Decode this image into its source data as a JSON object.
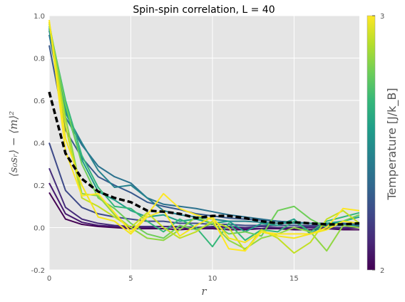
{
  "chart_data": {
    "type": "line",
    "title": "Spin-spin correlation, L = 40",
    "xlabel": "r",
    "ylabel": "⟨s₀sᵣ⟩ − ⟨m⟩²",
    "xlim": [
      0,
      19
    ],
    "ylim": [
      -0.2,
      1.0
    ],
    "xticks": [
      0,
      5,
      10,
      15
    ],
    "yticks": [
      -0.2,
      0.0,
      0.2,
      0.4,
      0.6,
      0.8,
      1.0
    ],
    "grid": true,
    "x": [
      0,
      1,
      2,
      3,
      4,
      5,
      6,
      7,
      8,
      9,
      10,
      11,
      12,
      13,
      14,
      15,
      16,
      17,
      18,
      19
    ],
    "series": [
      {
        "color": "#440154",
        "values": [
          0.165,
          0.04,
          0.015,
          0.005,
          0.0,
          -0.005,
          -0.005,
          -0.005,
          -0.01,
          -0.005,
          -0.005,
          -0.01,
          -0.01,
          -0.005,
          -0.005,
          -0.01,
          -0.01,
          -0.005,
          -0.01,
          -0.01
        ]
      },
      {
        "color": "#46186f",
        "values": [
          0.21,
          0.065,
          0.025,
          0.01,
          0.005,
          0.0,
          0.0,
          0.005,
          0.0,
          -0.005,
          0.0,
          0.0,
          -0.005,
          -0.005,
          0.0,
          -0.005,
          0.0,
          -0.005,
          -0.005,
          0.0
        ]
      },
      {
        "color": "#472d7b",
        "values": [
          0.28,
          0.095,
          0.04,
          0.02,
          0.01,
          0.005,
          0.005,
          0.005,
          0.005,
          0.0,
          0.005,
          0.005,
          0.0,
          0.005,
          0.0,
          0.0,
          0.005,
          0.0,
          0.0,
          0.005
        ]
      },
      {
        "color": "#3e4a89",
        "values": [
          0.4,
          0.175,
          0.095,
          0.065,
          0.05,
          0.04,
          0.03,
          0.03,
          0.02,
          0.02,
          0.015,
          0.015,
          0.01,
          0.01,
          0.01,
          0.01,
          0.01,
          0.01,
          0.01,
          0.01
        ]
      },
      {
        "color": "#38598c",
        "values": [
          0.86,
          0.46,
          0.33,
          0.24,
          0.2,
          0.165,
          0.12,
          0.1,
          0.085,
          0.065,
          0.055,
          0.045,
          0.04,
          0.035,
          0.03,
          0.025,
          0.02,
          0.02,
          0.02,
          0.015
        ]
      },
      {
        "color": "#2c728e",
        "values": [
          0.91,
          0.52,
          0.39,
          0.29,
          0.24,
          0.21,
          0.14,
          0.11,
          0.1,
          0.09,
          0.075,
          0.06,
          0.05,
          0.04,
          0.03,
          0.025,
          0.02,
          0.02,
          0.015,
          0.01
        ]
      },
      {
        "color": "#26828e",
        "values": [
          0.93,
          0.54,
          0.4,
          0.27,
          0.19,
          0.2,
          0.14,
          0.08,
          0.06,
          0.05,
          0.04,
          0.03,
          0.03,
          0.025,
          0.02,
          0.02,
          0.02,
          0.015,
          0.01,
          0.01
        ]
      },
      {
        "color": "#1f9e89",
        "values": [
          0.94,
          0.56,
          0.32,
          0.17,
          0.13,
          0.08,
          0.05,
          0.06,
          0.03,
          0.04,
          0.02,
          0.03,
          -0.02,
          0.02,
          0.01,
          0.04,
          -0.03,
          0.02,
          0.03,
          0.05
        ]
      },
      {
        "color": "#35b779",
        "values": [
          0.95,
          0.6,
          0.34,
          0.19,
          0.1,
          0.09,
          0.03,
          -0.02,
          0.04,
          0.0,
          -0.09,
          0.02,
          -0.06,
          -0.01,
          -0.02,
          0.03,
          -0.02,
          0.03,
          0.05,
          0.07
        ]
      },
      {
        "color": "#6ece58",
        "values": [
          0.96,
          0.58,
          0.3,
          0.14,
          0.09,
          0.02,
          -0.03,
          -0.05,
          0.01,
          -0.01,
          0.02,
          -0.03,
          -0.02,
          -0.04,
          0.08,
          0.1,
          0.04,
          0.0,
          0.03,
          0.06
        ]
      },
      {
        "color": "#90d743",
        "values": [
          0.97,
          0.52,
          0.16,
          0.15,
          0.06,
          0.0,
          -0.05,
          -0.06,
          -0.01,
          0.05,
          0.02,
          -0.06,
          -0.1,
          -0.05,
          -0.03,
          0.0,
          -0.02,
          -0.11,
          0.01,
          0.0
        ]
      },
      {
        "color": "#c2df23",
        "values": [
          0.97,
          0.48,
          0.14,
          0.1,
          0.05,
          0.0,
          0.07,
          0.0,
          -0.05,
          -0.02,
          0.03,
          0.0,
          -0.11,
          -0.01,
          -0.05,
          -0.12,
          -0.07,
          0.04,
          0.08,
          0.02
        ]
      },
      {
        "color": "#fde725",
        "values": [
          0.98,
          0.36,
          0.15,
          0.16,
          0.07,
          -0.02,
          0.06,
          0.16,
          0.09,
          0.06,
          0.04,
          -0.1,
          -0.11,
          -0.02,
          -0.03,
          -0.03,
          -0.03,
          0.0,
          0.09,
          0.08
        ]
      },
      {
        "color": "#f4e61e",
        "values": [
          0.97,
          0.42,
          0.2,
          0.05,
          0.03,
          -0.03,
          0.05,
          0.08,
          -0.04,
          0.01,
          0.05,
          -0.05,
          -0.07,
          -0.02,
          -0.04,
          -0.05,
          -0.03,
          -0.01,
          0.03,
          0.02
        ]
      }
    ],
    "mean_series": {
      "style": "black-dashed",
      "values": [
        0.64,
        0.35,
        0.23,
        0.17,
        0.14,
        0.12,
        0.08,
        0.075,
        0.065,
        0.045,
        0.055,
        0.055,
        0.045,
        0.03,
        0.02,
        0.025,
        0.02,
        0.015,
        0.015,
        0.02
      ]
    },
    "colorbar": {
      "label": "Temperature [J/k_B]",
      "ticks": [
        "3",
        "2"
      ],
      "colors": [
        "#440154",
        "#482878",
        "#3e4989",
        "#31688e",
        "#26828e",
        "#1f9e89",
        "#35b779",
        "#6ece58",
        "#b5de2b",
        "#fde725"
      ]
    }
  }
}
